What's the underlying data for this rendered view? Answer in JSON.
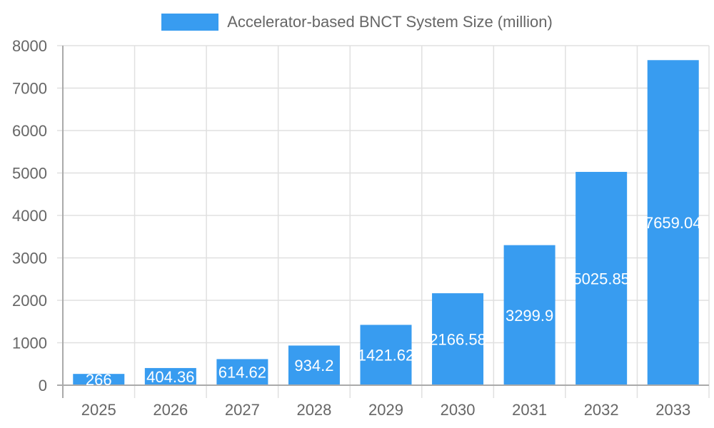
{
  "chart_data": {
    "type": "bar",
    "title": "",
    "legend": [
      "Accelerator-based BNCT System Size (million)"
    ],
    "legend_position": "top",
    "categories": [
      "2025",
      "2026",
      "2027",
      "2028",
      "2029",
      "2030",
      "2031",
      "2032",
      "2033"
    ],
    "series": [
      {
        "name": "Accelerator-based BNCT System Size (million)",
        "values": [
          266,
          404.36,
          614.62,
          934.2,
          1421.62,
          2166.58,
          3299.9,
          5025.85,
          7659.04
        ],
        "color": "#389cf0"
      }
    ],
    "data_labels": [
      "266",
      "404.36",
      "614.62",
      "934.2",
      "1421.62",
      "2166.58",
      "3299.9",
      "5025.85",
      "7659.04"
    ],
    "xlabel": "",
    "ylabel": "",
    "ylim": [
      0,
      8000
    ],
    "yticks": [
      "0",
      "1000",
      "2000",
      "3000",
      "4000",
      "5000",
      "6000",
      "7000",
      "8000"
    ],
    "grid": true
  },
  "legend": {
    "label": "Accelerator-based BNCT System Size (million)"
  }
}
